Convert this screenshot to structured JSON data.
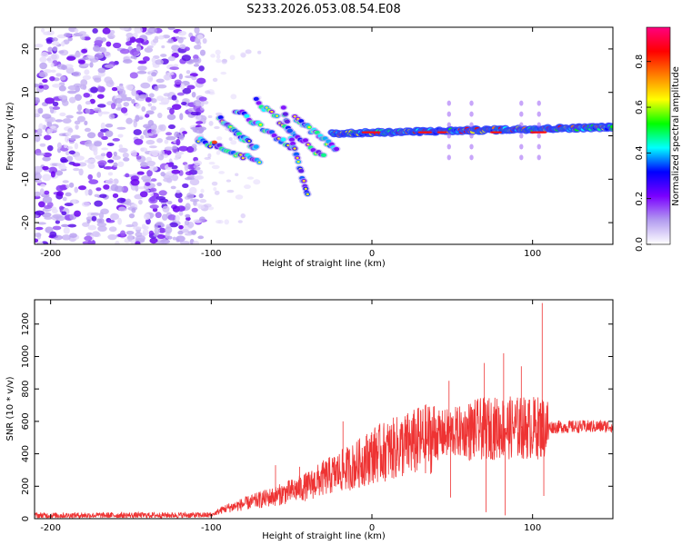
{
  "title": "S233.2026.053.08.54.E08",
  "chart_data": [
    {
      "type": "heatmap",
      "xlabel": "Height of straight line (km)",
      "ylabel": "Frequency (Hz)",
      "xlim": [
        -210,
        150
      ],
      "ylim": [
        -25,
        25
      ],
      "xticks": [
        -200,
        -100,
        0,
        100
      ],
      "yticks": [
        -20,
        -10,
        0,
        10,
        20
      ],
      "colorbar": {
        "label": "Normalized spectral amplitude",
        "range": [
          0,
          0.95
        ],
        "ticks": [
          0.0,
          0.2,
          0.4,
          0.6,
          0.8
        ],
        "colors": [
          "#ffffff",
          "#b39cf0",
          "#7a00ff",
          "#0000ff",
          "#00ffff",
          "#00ff00",
          "#ffff00",
          "#ff8000",
          "#ff0000",
          "#ff0080"
        ]
      },
      "trace": {
        "noise_region_x": [
          -210,
          -110
        ],
        "chirp_region_x": [
          -110,
          -25
        ],
        "steady_line_x": [
          -25,
          150
        ],
        "steady_line_frequency_hz": [
          0.5,
          2
        ]
      }
    },
    {
      "type": "line",
      "xlabel": "Height of straight line (km)",
      "ylabel": "SNR (10 * v/v)",
      "xlim": [
        -210,
        150
      ],
      "ylim": [
        0,
        1350
      ],
      "xticks": [
        -200,
        -100,
        0,
        100
      ],
      "yticks": [
        0,
        200,
        400,
        600,
        800,
        1000,
        1200
      ],
      "series": [
        {
          "name": "SNR",
          "color": "#ee3333",
          "x": [
            -210,
            -100,
            -92,
            -80,
            -60,
            -40,
            -30,
            -20,
            -10,
            0,
            20,
            40,
            50,
            60,
            70,
            80,
            90,
            100,
            110,
            150
          ],
          "baseline": [
            20,
            22,
            60,
            90,
            140,
            200,
            250,
            290,
            330,
            390,
            450,
            510,
            530,
            540,
            555,
            560,
            560,
            560,
            565,
            570
          ],
          "spikes": [
            {
              "x": -60,
              "y": 330
            },
            {
              "x": -45,
              "y": 320
            },
            {
              "x": -18,
              "y": 600
            },
            {
              "x": 3,
              "y": 530
            },
            {
              "x": 48,
              "y": 850
            },
            {
              "x": 49,
              "y": 130
            },
            {
              "x": 70,
              "y": 960
            },
            {
              "x": 71,
              "y": 40
            },
            {
              "x": 82,
              "y": 1020
            },
            {
              "x": 83,
              "y": 20
            },
            {
              "x": 93,
              "y": 940
            },
            {
              "x": 106,
              "y": 1330
            },
            {
              "x": 107,
              "y": 140
            }
          ]
        }
      ]
    }
  ]
}
